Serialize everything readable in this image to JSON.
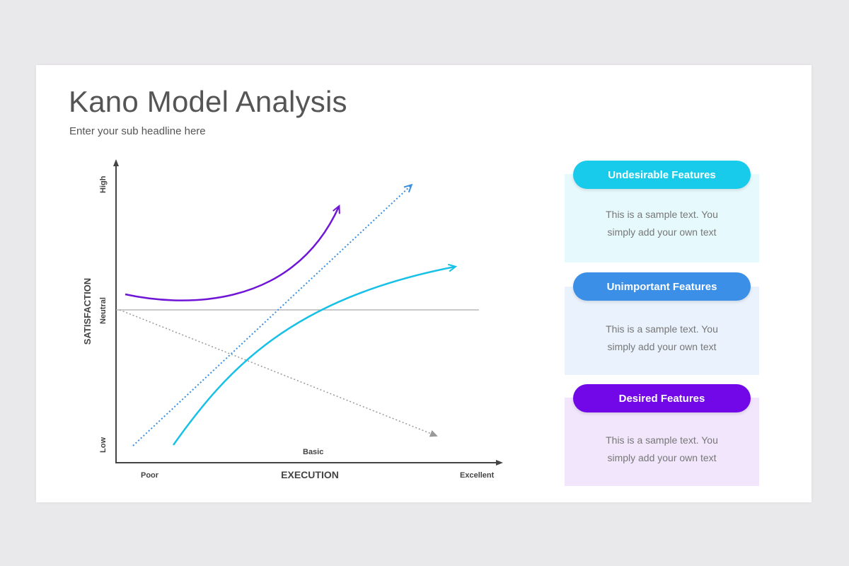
{
  "header": {
    "title": "Kano Model Analysis",
    "subtitle": "Enter your sub headline here"
  },
  "diagram": {
    "y_axis": {
      "title": "SATISFACTION",
      "high_label": "High",
      "neutral_label": "Neutral",
      "low_label": "Low"
    },
    "x_axis": {
      "title": "EXECUTION",
      "poor_label": "Poor",
      "excellent_label": "Excellent"
    },
    "basic_label": "Basic",
    "colors": {
      "purple_curve": "#6f16d6",
      "blue_dotted": "#3b8fe0",
      "cyan_curve": "#17c0e6",
      "gray_dotted": "#999999",
      "axis": "#444444",
      "neutral_line": "#aaaaaa"
    }
  },
  "cards": [
    {
      "title": "Undesirable Features",
      "text": "This is a sample text. You simply add your own text",
      "pill_color": "#18cbea",
      "bg_color": "#e6f9fc"
    },
    {
      "title": "Unimportant Features",
      "text": "This is a sample text. You simply add your own text",
      "pill_color": "#3b8fe6",
      "bg_color": "#eaf2fd"
    },
    {
      "title": "Desired Features",
      "text": "This is a sample text. You simply add your own text",
      "pill_color": "#7207e8",
      "bg_color": "#f1e6fc"
    }
  ]
}
